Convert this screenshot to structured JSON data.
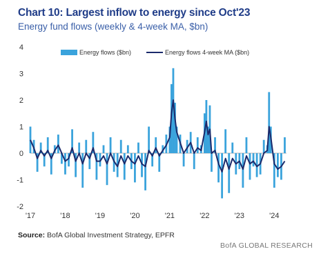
{
  "header": {
    "title": "Chart 10: Largest inflow to energy since Oct'23",
    "subtitle": "Energy fund flows (weekly & 4-week MA, $bn)"
  },
  "source": {
    "label": "Source:",
    "text": " BofA Global Investment Strategy, EPFR"
  },
  "brand": "BofA GLOBAL RESEARCH",
  "colors": {
    "bars": "#3aa3dc",
    "ma": "#1b2a6b",
    "title": "#1f3c88"
  },
  "chart_data": {
    "type": "bar",
    "ylim": [
      -2,
      4
    ],
    "yticks": [
      4,
      3,
      2,
      1,
      0,
      -1,
      -2
    ],
    "xticks": [
      "'17",
      "'18",
      "'19",
      "'20",
      "'21",
      "'22",
      "'23",
      "'24"
    ],
    "x_unit": "year",
    "x_range": [
      2017.0,
      2024.35
    ],
    "legend": {
      "placement": "top",
      "entries": [
        "Energy flows ($bn)",
        "Energy flows 4-week MA ($bn)"
      ]
    },
    "series": [
      {
        "name": "Energy flows ($bn)",
        "kind": "bar",
        "x": [
          2017.0,
          2017.1,
          2017.2,
          2017.3,
          2017.4,
          2017.5,
          2017.6,
          2017.7,
          2017.8,
          2017.9,
          2018.0,
          2018.1,
          2018.2,
          2018.3,
          2018.4,
          2018.5,
          2018.6,
          2018.7,
          2018.8,
          2018.9,
          2019.0,
          2019.1,
          2019.2,
          2019.3,
          2019.4,
          2019.5,
          2019.6,
          2019.7,
          2019.8,
          2019.9,
          2020.0,
          2020.1,
          2020.2,
          2020.3,
          2020.4,
          2020.5,
          2020.6,
          2020.7,
          2020.8,
          2020.9,
          2021.0,
          2021.05,
          2021.1,
          2021.15,
          2021.2,
          2021.3,
          2021.4,
          2021.5,
          2021.6,
          2021.7,
          2021.8,
          2021.9,
          2022.0,
          2022.05,
          2022.1,
          2022.15,
          2022.2,
          2022.3,
          2022.4,
          2022.5,
          2022.6,
          2022.7,
          2022.8,
          2022.9,
          2023.0,
          2023.1,
          2023.2,
          2023.3,
          2023.4,
          2023.5,
          2023.6,
          2023.7,
          2023.8,
          2023.85,
          2023.9,
          2024.0,
          2024.1,
          2024.2,
          2024.3
        ],
        "values": [
          1.0,
          0.5,
          -0.7,
          0.4,
          -0.5,
          0.6,
          -0.8,
          0.3,
          0.7,
          -0.4,
          -0.8,
          -0.5,
          0.9,
          -0.9,
          0.4,
          -1.3,
          0.5,
          -0.6,
          0.8,
          -1.0,
          -0.5,
          0.3,
          -1.2,
          0.6,
          -0.7,
          -0.9,
          0.5,
          -1.0,
          0.3,
          -0.6,
          -1.1,
          0.4,
          -0.9,
          -1.4,
          1.0,
          -0.5,
          0.6,
          -0.7,
          0.3,
          0.7,
          1.0,
          2.6,
          3.2,
          1.9,
          1.0,
          0.7,
          -0.5,
          0.5,
          0.8,
          -0.6,
          0.6,
          0.3,
          1.5,
          2.0,
          1.0,
          1.8,
          -0.7,
          0.6,
          -1.1,
          -1.7,
          0.9,
          -1.5,
          0.4,
          -0.8,
          -0.6,
          -1.3,
          0.6,
          -1.0,
          -0.5,
          -0.9,
          -0.8,
          0.5,
          0.3,
          2.3,
          1.0,
          -1.3,
          -0.9,
          -1.0,
          0.6
        ]
      },
      {
        "name": "Energy flows 4-week MA ($bn)",
        "kind": "line",
        "x": [
          2017.0,
          2017.1,
          2017.2,
          2017.3,
          2017.4,
          2017.5,
          2017.6,
          2017.7,
          2017.8,
          2017.9,
          2018.0,
          2018.1,
          2018.2,
          2018.3,
          2018.4,
          2018.5,
          2018.6,
          2018.7,
          2018.8,
          2018.9,
          2019.0,
          2019.1,
          2019.2,
          2019.3,
          2019.4,
          2019.5,
          2019.6,
          2019.7,
          2019.8,
          2019.9,
          2020.0,
          2020.1,
          2020.2,
          2020.3,
          2020.4,
          2020.5,
          2020.6,
          2020.7,
          2020.8,
          2020.9,
          2021.0,
          2021.05,
          2021.1,
          2021.15,
          2021.2,
          2021.3,
          2021.4,
          2021.5,
          2021.6,
          2021.7,
          2021.8,
          2021.9,
          2022.0,
          2022.05,
          2022.1,
          2022.15,
          2022.2,
          2022.3,
          2022.4,
          2022.5,
          2022.6,
          2022.7,
          2022.8,
          2022.9,
          2023.0,
          2023.1,
          2023.2,
          2023.3,
          2023.4,
          2023.5,
          2023.6,
          2023.7,
          2023.8,
          2023.85,
          2023.9,
          2024.0,
          2024.1,
          2024.2,
          2024.3
        ],
        "values": [
          0.5,
          0.2,
          -0.2,
          0.1,
          -0.1,
          0.1,
          -0.2,
          0.1,
          0.3,
          0.0,
          -0.3,
          -0.2,
          0.2,
          -0.3,
          0.0,
          -0.4,
          0.0,
          -0.2,
          0.2,
          -0.3,
          -0.3,
          -0.1,
          -0.4,
          0.0,
          -0.3,
          -0.5,
          -0.1,
          -0.4,
          -0.1,
          -0.3,
          -0.4,
          -0.1,
          -0.4,
          -0.5,
          0.1,
          -0.1,
          0.2,
          -0.1,
          0.1,
          0.3,
          0.6,
          1.5,
          2.0,
          1.3,
          0.8,
          0.4,
          0.0,
          0.2,
          0.4,
          0.0,
          0.2,
          0.1,
          0.8,
          1.2,
          0.7,
          0.9,
          0.0,
          0.1,
          -0.4,
          -0.7,
          -0.2,
          -0.6,
          -0.2,
          -0.4,
          -0.3,
          -0.6,
          -0.1,
          -0.4,
          -0.3,
          -0.5,
          -0.4,
          0.0,
          0.1,
          1.0,
          0.6,
          -0.4,
          -0.6,
          -0.5,
          -0.3
        ]
      }
    ]
  }
}
